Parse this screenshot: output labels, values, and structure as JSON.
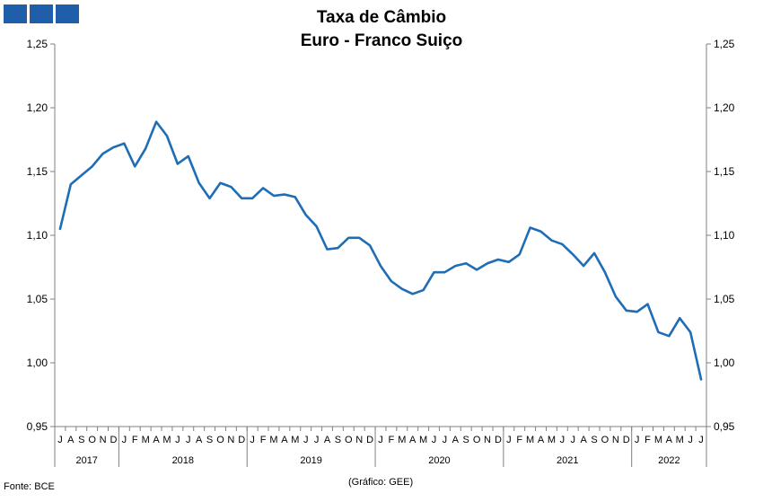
{
  "header": {
    "title_line1": "Taxa de Câmbio",
    "title_line2": "Euro - Franco Suiço"
  },
  "footer": {
    "source": "Fonte: BCE",
    "credit": "(Gráfico: GEE)"
  },
  "colors": {
    "logo": "#1f5ea8",
    "line": "#1f6db5",
    "axis": "#808080"
  },
  "chart_data": {
    "type": "line",
    "ylim": [
      0.95,
      1.25
    ],
    "yticks": [
      "0,95",
      "1,00",
      "1,05",
      "1,10",
      "1,15",
      "1,20",
      "1,25"
    ],
    "ytick_values": [
      0.95,
      1.0,
      1.05,
      1.1,
      1.15,
      1.2,
      1.25
    ],
    "month_labels": [
      "J",
      "A",
      "S",
      "O",
      "N",
      "D",
      "J",
      "F",
      "M",
      "A",
      "M",
      "J",
      "J",
      "A",
      "S",
      "O",
      "N",
      "D",
      "J",
      "F",
      "M",
      "A",
      "M",
      "J",
      "J",
      "A",
      "S",
      "O",
      "N",
      "D",
      "J",
      "F",
      "M",
      "A",
      "M",
      "J",
      "J",
      "A",
      "S",
      "O",
      "N",
      "D",
      "J",
      "F",
      "M",
      "A",
      "M",
      "J",
      "J",
      "A",
      "S",
      "O",
      "N",
      "D",
      "J",
      "F",
      "M",
      "A",
      "M",
      "J",
      "J"
    ],
    "years": [
      {
        "label": "2017",
        "months": 6
      },
      {
        "label": "2018",
        "months": 12
      },
      {
        "label": "2019",
        "months": 12
      },
      {
        "label": "2020",
        "months": 12
      },
      {
        "label": "2021",
        "months": 12
      },
      {
        "label": "2022",
        "months": 7
      }
    ],
    "values": [
      1.105,
      1.14,
      1.147,
      1.154,
      1.164,
      1.169,
      1.172,
      1.154,
      1.168,
      1.189,
      1.178,
      1.156,
      1.162,
      1.141,
      1.129,
      1.141,
      1.138,
      1.129,
      1.129,
      1.137,
      1.131,
      1.132,
      1.13,
      1.116,
      1.107,
      1.089,
      1.09,
      1.098,
      1.098,
      1.092,
      1.076,
      1.064,
      1.058,
      1.054,
      1.057,
      1.071,
      1.071,
      1.076,
      1.078,
      1.073,
      1.078,
      1.081,
      1.079,
      1.085,
      1.106,
      1.103,
      1.096,
      1.093,
      1.085,
      1.076,
      1.086,
      1.071,
      1.052,
      1.041,
      1.04,
      1.046,
      1.024,
      1.021,
      1.035,
      1.024,
      0.987
    ]
  }
}
